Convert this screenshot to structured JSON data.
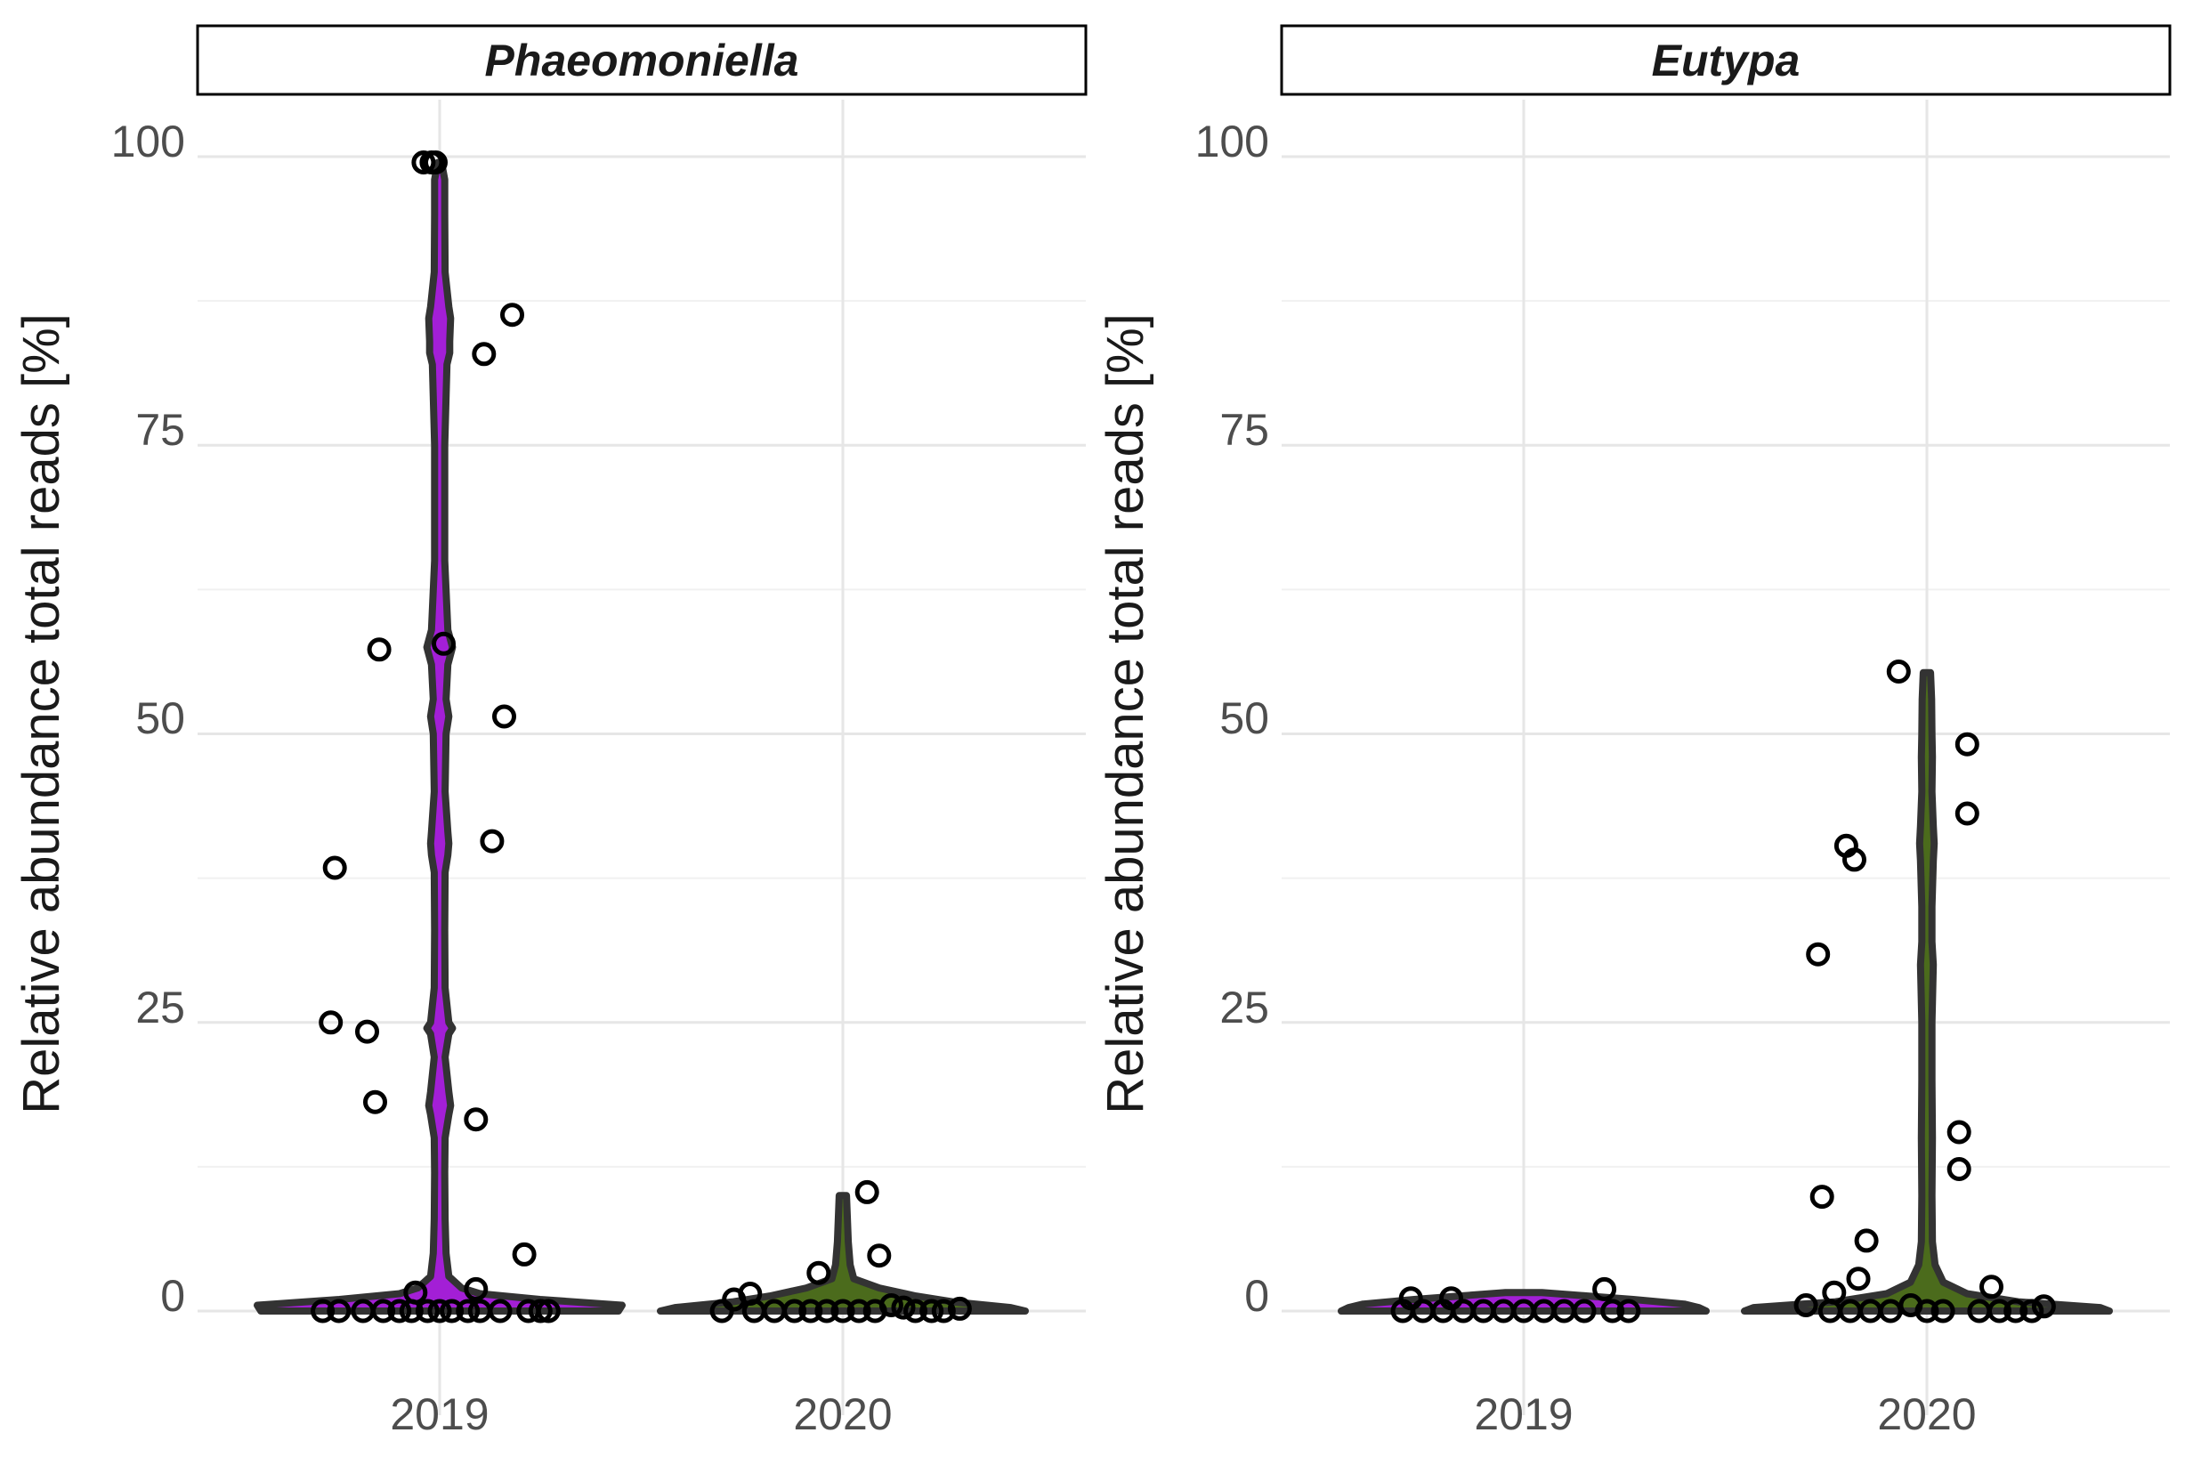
{
  "chart_data": [
    {
      "type": "violin",
      "title": "Phaeomoniella",
      "xlabel": "",
      "ylabel": "Relative abundance total reads [%]",
      "ylim": [
        0,
        100
      ],
      "yticks": [
        "0",
        "25",
        "50",
        "75",
        "100"
      ],
      "categories": [
        "2019",
        "2020"
      ],
      "fill_colors": [
        "#a31fd6",
        "#4b6b1c"
      ],
      "violins": [
        {
          "category": "2019",
          "y": [
            0,
            0.5,
            1,
            1.5,
            2,
            3,
            5,
            8,
            12,
            15,
            17,
            17.8,
            19,
            22,
            24,
            24.5,
            25,
            28,
            33,
            38,
            39.5,
            40.5,
            41.5,
            45,
            50,
            51.5,
            53,
            56,
            57.5,
            59,
            65,
            75,
            82,
            83,
            84,
            86,
            87,
            90,
            95,
            98,
            99.5
          ],
          "w": [
            0.98,
            1.0,
            0.55,
            0.22,
            0.12,
            0.05,
            0.035,
            0.03,
            0.028,
            0.03,
            0.05,
            0.06,
            0.05,
            0.03,
            0.05,
            0.07,
            0.05,
            0.03,
            0.028,
            0.03,
            0.045,
            0.05,
            0.045,
            0.03,
            0.035,
            0.05,
            0.035,
            0.045,
            0.07,
            0.045,
            0.028,
            0.028,
            0.04,
            0.055,
            0.055,
            0.06,
            0.05,
            0.03,
            0.028,
            0.028,
            0.01
          ]
        },
        {
          "category": "2020",
          "y": [
            0,
            0.3,
            0.8,
            1.3,
            2,
            2.8,
            4,
            6,
            8,
            10
          ],
          "w": [
            1.0,
            0.92,
            0.6,
            0.4,
            0.2,
            0.06,
            0.04,
            0.03,
            0.025,
            0.02
          ]
        }
      ],
      "points": [
        {
          "category": "2019",
          "jitter": -0.04,
          "y": 99.5
        },
        {
          "category": "2019",
          "jitter": -0.02,
          "y": 99.5
        },
        {
          "category": "2019",
          "jitter": -0.01,
          "y": 99.5
        },
        {
          "category": "2019",
          "jitter": 0.18,
          "y": 86.3
        },
        {
          "category": "2019",
          "jitter": 0.11,
          "y": 82.9
        },
        {
          "category": "2019",
          "jitter": -0.15,
          "y": 57.3
        },
        {
          "category": "2019",
          "jitter": 0.01,
          "y": 57.8
        },
        {
          "category": "2019",
          "jitter": 0.16,
          "y": 51.5
        },
        {
          "category": "2019",
          "jitter": 0.13,
          "y": 40.7
        },
        {
          "category": "2019",
          "jitter": -0.26,
          "y": 38.4
        },
        {
          "category": "2019",
          "jitter": -0.27,
          "y": 25.0
        },
        {
          "category": "2019",
          "jitter": -0.18,
          "y": 24.2
        },
        {
          "category": "2019",
          "jitter": -0.16,
          "y": 18.1
        },
        {
          "category": "2019",
          "jitter": 0.09,
          "y": 16.6
        },
        {
          "category": "2019",
          "jitter": 0.21,
          "y": 4.9
        },
        {
          "category": "2019",
          "jitter": -0.06,
          "y": 1.6
        },
        {
          "category": "2019",
          "jitter": 0.09,
          "y": 1.9
        },
        {
          "category": "2019",
          "jitter": -0.29,
          "y": 0
        },
        {
          "category": "2019",
          "jitter": -0.25,
          "y": 0
        },
        {
          "category": "2019",
          "jitter": -0.19,
          "y": 0
        },
        {
          "category": "2019",
          "jitter": -0.14,
          "y": 0
        },
        {
          "category": "2019",
          "jitter": -0.1,
          "y": 0
        },
        {
          "category": "2019",
          "jitter": -0.07,
          "y": 0
        },
        {
          "category": "2019",
          "jitter": -0.03,
          "y": 0
        },
        {
          "category": "2019",
          "jitter": 0.0,
          "y": 0
        },
        {
          "category": "2019",
          "jitter": 0.03,
          "y": 0
        },
        {
          "category": "2019",
          "jitter": 0.07,
          "y": 0
        },
        {
          "category": "2019",
          "jitter": 0.1,
          "y": 0
        },
        {
          "category": "2019",
          "jitter": 0.15,
          "y": 0
        },
        {
          "category": "2019",
          "jitter": 0.22,
          "y": 0
        },
        {
          "category": "2019",
          "jitter": 0.25,
          "y": 0
        },
        {
          "category": "2019",
          "jitter": 0.27,
          "y": 0
        },
        {
          "category": "2020",
          "jitter": 0.06,
          "y": 10.3
        },
        {
          "category": "2020",
          "jitter": 0.09,
          "y": 4.8
        },
        {
          "category": "2020",
          "jitter": -0.06,
          "y": 3.3
        },
        {
          "category": "2020",
          "jitter": -0.23,
          "y": 1.5
        },
        {
          "category": "2020",
          "jitter": -0.27,
          "y": 1.0
        },
        {
          "category": "2020",
          "jitter": -0.3,
          "y": 0
        },
        {
          "category": "2020",
          "jitter": -0.22,
          "y": 0
        },
        {
          "category": "2020",
          "jitter": -0.17,
          "y": 0
        },
        {
          "category": "2020",
          "jitter": -0.12,
          "y": 0
        },
        {
          "category": "2020",
          "jitter": -0.08,
          "y": 0
        },
        {
          "category": "2020",
          "jitter": -0.04,
          "y": 0
        },
        {
          "category": "2020",
          "jitter": 0.0,
          "y": 0
        },
        {
          "category": "2020",
          "jitter": 0.04,
          "y": 0
        },
        {
          "category": "2020",
          "jitter": 0.08,
          "y": 0
        },
        {
          "category": "2020",
          "jitter": 0.12,
          "y": 0.5
        },
        {
          "category": "2020",
          "jitter": 0.15,
          "y": 0.3
        },
        {
          "category": "2020",
          "jitter": 0.18,
          "y": 0
        },
        {
          "category": "2020",
          "jitter": 0.22,
          "y": 0
        },
        {
          "category": "2020",
          "jitter": 0.25,
          "y": 0
        },
        {
          "category": "2020",
          "jitter": 0.29,
          "y": 0.2
        }
      ]
    },
    {
      "type": "violin",
      "title": "Eutypa",
      "xlabel": "",
      "ylabel": "Relative abundance total reads [%]",
      "ylim": [
        0,
        100
      ],
      "yticks": [
        "0",
        "25",
        "50",
        "75",
        "100"
      ],
      "categories": [
        "2019",
        "2020"
      ],
      "fill_colors": [
        "#a31fd6",
        "#4b6b1c"
      ],
      "violins": [
        {
          "category": "2019",
          "y": [
            0,
            0.3,
            0.6,
            1.0,
            1.3,
            1.6
          ],
          "w": [
            1.0,
            0.96,
            0.88,
            0.6,
            0.35,
            0.1
          ]
        },
        {
          "category": "2020",
          "y": [
            0,
            0.3,
            0.8,
            1.5,
            2.5,
            4,
            6,
            10,
            15,
            20,
            25,
            30,
            32,
            35,
            39,
            40.5,
            42,
            45,
            48,
            50,
            53,
            55.3
          ],
          "w": [
            1.0,
            0.95,
            0.5,
            0.22,
            0.09,
            0.045,
            0.03,
            0.028,
            0.03,
            0.028,
            0.028,
            0.035,
            0.028,
            0.028,
            0.035,
            0.04,
            0.035,
            0.028,
            0.03,
            0.028,
            0.026,
            0.02
          ]
        }
      ],
      "points": [
        {
          "category": "2019",
          "jitter": 0.2,
          "y": 1.9
        },
        {
          "category": "2019",
          "jitter": -0.28,
          "y": 1.1
        },
        {
          "category": "2019",
          "jitter": -0.18,
          "y": 1.1
        },
        {
          "category": "2019",
          "jitter": -0.3,
          "y": 0
        },
        {
          "category": "2019",
          "jitter": -0.25,
          "y": 0
        },
        {
          "category": "2019",
          "jitter": -0.2,
          "y": 0
        },
        {
          "category": "2019",
          "jitter": -0.15,
          "y": 0
        },
        {
          "category": "2019",
          "jitter": -0.1,
          "y": 0
        },
        {
          "category": "2019",
          "jitter": -0.05,
          "y": 0
        },
        {
          "category": "2019",
          "jitter": 0.0,
          "y": 0
        },
        {
          "category": "2019",
          "jitter": 0.05,
          "y": 0
        },
        {
          "category": "2019",
          "jitter": 0.1,
          "y": 0
        },
        {
          "category": "2019",
          "jitter": 0.15,
          "y": 0
        },
        {
          "category": "2019",
          "jitter": 0.22,
          "y": 0
        },
        {
          "category": "2019",
          "jitter": 0.26,
          "y": 0
        },
        {
          "category": "2020",
          "jitter": -0.07,
          "y": 55.4
        },
        {
          "category": "2020",
          "jitter": 0.1,
          "y": 49.1
        },
        {
          "category": "2020",
          "jitter": 0.1,
          "y": 43.1
        },
        {
          "category": "2020",
          "jitter": -0.2,
          "y": 40.3
        },
        {
          "category": "2020",
          "jitter": -0.18,
          "y": 39.1
        },
        {
          "category": "2020",
          "jitter": -0.27,
          "y": 30.9
        },
        {
          "category": "2020",
          "jitter": 0.08,
          "y": 15.5
        },
        {
          "category": "2020",
          "jitter": 0.08,
          "y": 12.3
        },
        {
          "category": "2020",
          "jitter": -0.26,
          "y": 9.9
        },
        {
          "category": "2020",
          "jitter": -0.15,
          "y": 6.1
        },
        {
          "category": "2020",
          "jitter": -0.17,
          "y": 2.8
        },
        {
          "category": "2020",
          "jitter": 0.16,
          "y": 2.1
        },
        {
          "category": "2020",
          "jitter": -0.23,
          "y": 1.6
        },
        {
          "category": "2020",
          "jitter": -0.3,
          "y": 0.5
        },
        {
          "category": "2020",
          "jitter": -0.24,
          "y": 0
        },
        {
          "category": "2020",
          "jitter": -0.19,
          "y": 0
        },
        {
          "category": "2020",
          "jitter": -0.14,
          "y": 0
        },
        {
          "category": "2020",
          "jitter": -0.09,
          "y": 0
        },
        {
          "category": "2020",
          "jitter": -0.04,
          "y": 0.5
        },
        {
          "category": "2020",
          "jitter": 0.0,
          "y": 0
        },
        {
          "category": "2020",
          "jitter": 0.04,
          "y": 0
        },
        {
          "category": "2020",
          "jitter": 0.13,
          "y": 0
        },
        {
          "category": "2020",
          "jitter": 0.18,
          "y": 0
        },
        {
          "category": "2020",
          "jitter": 0.22,
          "y": 0
        },
        {
          "category": "2020",
          "jitter": 0.26,
          "y": 0
        },
        {
          "category": "2020",
          "jitter": 0.29,
          "y": 0.4
        }
      ]
    }
  ]
}
